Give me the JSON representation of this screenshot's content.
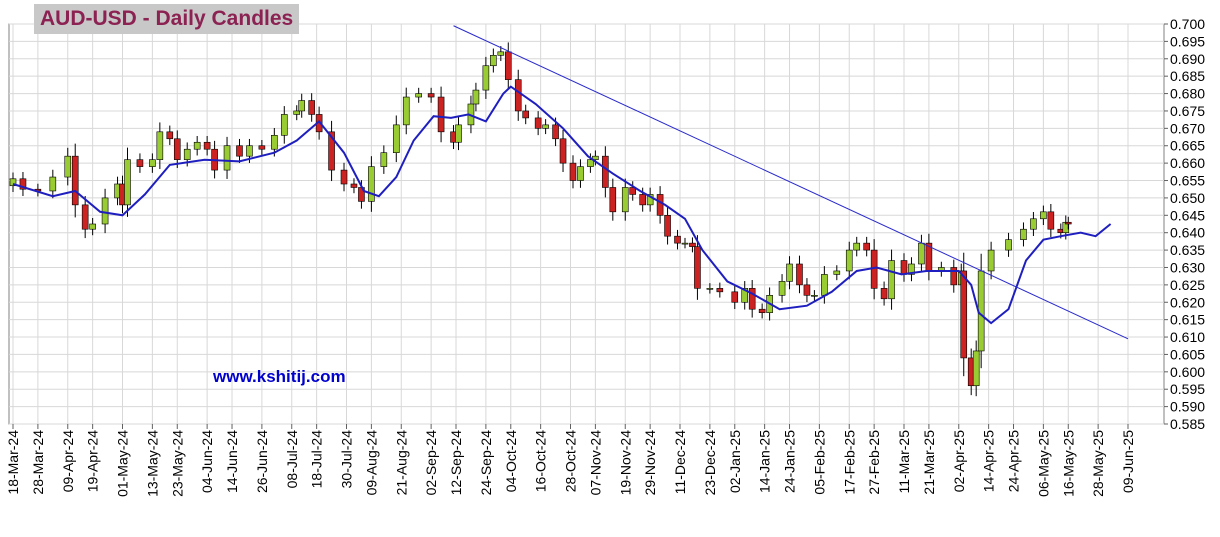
{
  "chart_data": {
    "type": "candlestick",
    "title": "AUD-USD - Daily Candles",
    "source_text": "www.kshitij.com",
    "y_axis": {
      "position": "right",
      "min": 0.585,
      "max": 0.7,
      "step": 0.005,
      "tick_labels": [
        "0.700",
        "0.695",
        "0.690",
        "0.685",
        "0.680",
        "0.675",
        "0.670",
        "0.665",
        "0.660",
        "0.655",
        "0.650",
        "0.645",
        "0.640",
        "0.635",
        "0.630",
        "0.625",
        "0.620",
        "0.615",
        "0.610",
        "0.605",
        "0.600",
        "0.595",
        "0.590",
        "0.585"
      ]
    },
    "x_axis": {
      "start": "2024-03-18",
      "end": "2025-06-09",
      "tick_labels": [
        "18-Mar-24",
        "28-Mar-24",
        "09-Apr-24",
        "19-Apr-24",
        "01-May-24",
        "13-May-24",
        "23-May-24",
        "04-Jun-24",
        "14-Jun-24",
        "26-Jun-24",
        "08-Jul-24",
        "18-Jul-24",
        "30-Jul-24",
        "09-Aug-24",
        "21-Aug-24",
        "02-Sep-24",
        "12-Sep-24",
        "24-Sep-24",
        "04-Oct-24",
        "16-Oct-24",
        "28-Oct-24",
        "07-Nov-24",
        "19-Nov-24",
        "29-Nov-24",
        "11-Dec-24",
        "23-Dec-24",
        "02-Jan-25",
        "14-Jan-25",
        "24-Jan-25",
        "05-Feb-25",
        "17-Feb-25",
        "27-Feb-25",
        "11-Mar-25",
        "21-Mar-25",
        "02-Apr-25",
        "14-Apr-25",
        "24-Apr-25",
        "06-May-25",
        "16-May-25",
        "28-May-25",
        "09-Jun-25"
      ]
    },
    "close_series": [
      [
        "2024-03-18",
        0.6555
      ],
      [
        "2024-03-22",
        0.6525
      ],
      [
        "2024-03-28",
        0.652
      ],
      [
        "2024-04-03",
        0.656
      ],
      [
        "2024-04-09",
        0.662
      ],
      [
        "2024-04-12",
        0.648
      ],
      [
        "2024-04-16",
        0.641
      ],
      [
        "2024-04-19",
        0.6425
      ],
      [
        "2024-04-24",
        0.65
      ],
      [
        "2024-04-29",
        0.654
      ],
      [
        "2024-05-01",
        0.648
      ],
      [
        "2024-05-03",
        0.661
      ],
      [
        "2024-05-08",
        0.659
      ],
      [
        "2024-05-13",
        0.661
      ],
      [
        "2024-05-16",
        0.669
      ],
      [
        "2024-05-20",
        0.667
      ],
      [
        "2024-05-23",
        0.661
      ],
      [
        "2024-05-27",
        0.664
      ],
      [
        "2024-05-31",
        0.666
      ],
      [
        "2024-06-04",
        0.664
      ],
      [
        "2024-06-07",
        0.658
      ],
      [
        "2024-06-12",
        0.665
      ],
      [
        "2024-06-17",
        0.662
      ],
      [
        "2024-06-21",
        0.665
      ],
      [
        "2024-06-26",
        0.664
      ],
      [
        "2024-07-01",
        0.668
      ],
      [
        "2024-07-05",
        0.674
      ],
      [
        "2024-07-10",
        0.675
      ],
      [
        "2024-07-12",
        0.678
      ],
      [
        "2024-07-16",
        0.674
      ],
      [
        "2024-07-19",
        0.669
      ],
      [
        "2024-07-24",
        0.658
      ],
      [
        "2024-07-29",
        0.654
      ],
      [
        "2024-08-02",
        0.653
      ],
      [
        "2024-08-05",
        0.649
      ],
      [
        "2024-08-09",
        0.659
      ],
      [
        "2024-08-14",
        0.663
      ],
      [
        "2024-08-19",
        0.671
      ],
      [
        "2024-08-23",
        0.679
      ],
      [
        "2024-08-28",
        0.68
      ],
      [
        "2024-09-02",
        0.679
      ],
      [
        "2024-09-06",
        0.669
      ],
      [
        "2024-09-11",
        0.666
      ],
      [
        "2024-09-13",
        0.671
      ],
      [
        "2024-09-18",
        0.677
      ],
      [
        "2024-09-20",
        0.681
      ],
      [
        "2024-09-24",
        0.688
      ],
      [
        "2024-09-27",
        0.691
      ],
      [
        "2024-09-30",
        0.692
      ],
      [
        "2024-10-03",
        0.684
      ],
      [
        "2024-10-07",
        0.675
      ],
      [
        "2024-10-10",
        0.673
      ],
      [
        "2024-10-15",
        0.67
      ],
      [
        "2024-10-18",
        0.671
      ],
      [
        "2024-10-22",
        0.667
      ],
      [
        "2024-10-25",
        0.66
      ],
      [
        "2024-10-29",
        0.655
      ],
      [
        "2024-11-01",
        0.659
      ],
      [
        "2024-11-05",
        0.661
      ],
      [
        "2024-11-07",
        0.662
      ],
      [
        "2024-11-11",
        0.653
      ],
      [
        "2024-11-14",
        0.646
      ],
      [
        "2024-11-19",
        0.653
      ],
      [
        "2024-11-22",
        0.651
      ],
      [
        "2024-11-26",
        0.648
      ],
      [
        "2024-11-29",
        0.651
      ],
      [
        "2024-12-03",
        0.645
      ],
      [
        "2024-12-06",
        0.639
      ],
      [
        "2024-12-10",
        0.637
      ],
      [
        "2024-12-13",
        0.637
      ],
      [
        "2024-12-16",
        0.636
      ],
      [
        "2024-12-18",
        0.624
      ],
      [
        "2024-12-23",
        0.624
      ],
      [
        "2024-12-27",
        0.623
      ],
      [
        "2025-01-02",
        0.62
      ],
      [
        "2025-01-06",
        0.624
      ],
      [
        "2025-01-09",
        0.618
      ],
      [
        "2025-01-13",
        0.617
      ],
      [
        "2025-01-16",
        0.622
      ],
      [
        "2025-01-21",
        0.626
      ],
      [
        "2025-01-24",
        0.631
      ],
      [
        "2025-01-28",
        0.625
      ],
      [
        "2025-01-31",
        0.622
      ],
      [
        "2025-02-03",
        0.622
      ],
      [
        "2025-02-07",
        0.628
      ],
      [
        "2025-02-12",
        0.629
      ],
      [
        "2025-02-17",
        0.635
      ],
      [
        "2025-02-20",
        0.637
      ],
      [
        "2025-02-24",
        0.635
      ],
      [
        "2025-02-27",
        0.624
      ],
      [
        "2025-03-03",
        0.621
      ],
      [
        "2025-03-06",
        0.632
      ],
      [
        "2025-03-11",
        0.628
      ],
      [
        "2025-03-14",
        0.631
      ],
      [
        "2025-03-18",
        0.637
      ],
      [
        "2025-03-21",
        0.629
      ],
      [
        "2025-03-26",
        0.63
      ],
      [
        "2025-03-31",
        0.625
      ],
      [
        "2025-04-03",
        0.629
      ],
      [
        "2025-04-04",
        0.604
      ],
      [
        "2025-04-07",
        0.596
      ],
      [
        "2025-04-09",
        0.606
      ],
      [
        "2025-04-11",
        0.629
      ],
      [
        "2025-04-15",
        0.635
      ],
      [
        "2025-04-22",
        0.638
      ],
      [
        "2025-04-28",
        0.641
      ],
      [
        "2025-05-02",
        0.644
      ],
      [
        "2025-05-06",
        0.646
      ],
      [
        "2025-05-09",
        0.641
      ],
      [
        "2025-05-13",
        0.64
      ],
      [
        "2025-05-15",
        0.643
      ],
      [
        "2025-05-16",
        0.6425
      ]
    ],
    "moving_average": [
      [
        "2024-03-18",
        0.654
      ],
      [
        "2024-04-03",
        0.6505
      ],
      [
        "2024-04-12",
        0.652
      ],
      [
        "2024-04-22",
        0.646
      ],
      [
        "2024-05-01",
        0.645
      ],
      [
        "2024-05-10",
        0.651
      ],
      [
        "2024-05-20",
        0.6595
      ],
      [
        "2024-06-03",
        0.661
      ],
      [
        "2024-06-17",
        0.6605
      ],
      [
        "2024-07-01",
        0.663
      ],
      [
        "2024-07-10",
        0.6665
      ],
      [
        "2024-07-19",
        0.672
      ],
      [
        "2024-07-29",
        0.663
      ],
      [
        "2024-08-06",
        0.652
      ],
      [
        "2024-08-12",
        0.6505
      ],
      [
        "2024-08-19",
        0.656
      ],
      [
        "2024-08-26",
        0.6665
      ],
      [
        "2024-09-03",
        0.6735
      ],
      [
        "2024-09-10",
        0.673
      ],
      [
        "2024-09-17",
        0.674
      ],
      [
        "2024-09-24",
        0.672
      ],
      [
        "2024-10-01",
        0.68
      ],
      [
        "2024-10-04",
        0.682
      ],
      [
        "2024-10-14",
        0.677
      ],
      [
        "2024-10-25",
        0.67
      ],
      [
        "2024-11-04",
        0.662
      ],
      [
        "2024-11-14",
        0.657
      ],
      [
        "2024-11-25",
        0.652
      ],
      [
        "2024-12-05",
        0.648
      ],
      [
        "2024-12-13",
        0.644
      ],
      [
        "2024-12-20",
        0.635
      ],
      [
        "2024-12-30",
        0.626
      ],
      [
        "2025-01-09",
        0.6225
      ],
      [
        "2025-01-20",
        0.618
      ],
      [
        "2025-01-31",
        0.619
      ],
      [
        "2025-02-10",
        0.623
      ],
      [
        "2025-02-20",
        0.629
      ],
      [
        "2025-02-28",
        0.63
      ],
      [
        "2025-03-10",
        0.628
      ],
      [
        "2025-03-20",
        0.629
      ],
      [
        "2025-03-27",
        0.629
      ],
      [
        "2025-04-02",
        0.629
      ],
      [
        "2025-04-07",
        0.625
      ],
      [
        "2025-04-10",
        0.617
      ],
      [
        "2025-04-15",
        0.614
      ],
      [
        "2025-04-22",
        0.618
      ],
      [
        "2025-04-29",
        0.632
      ],
      [
        "2025-05-06",
        0.638
      ],
      [
        "2025-05-13",
        0.639
      ],
      [
        "2025-05-21",
        0.64
      ],
      [
        "2025-05-27",
        0.639
      ],
      [
        "2025-06-02",
        0.6425
      ]
    ],
    "trendline": {
      "from": [
        "2024-09-11",
        0.6995
      ],
      "to": [
        "2025-06-09",
        0.6095
      ]
    }
  }
}
